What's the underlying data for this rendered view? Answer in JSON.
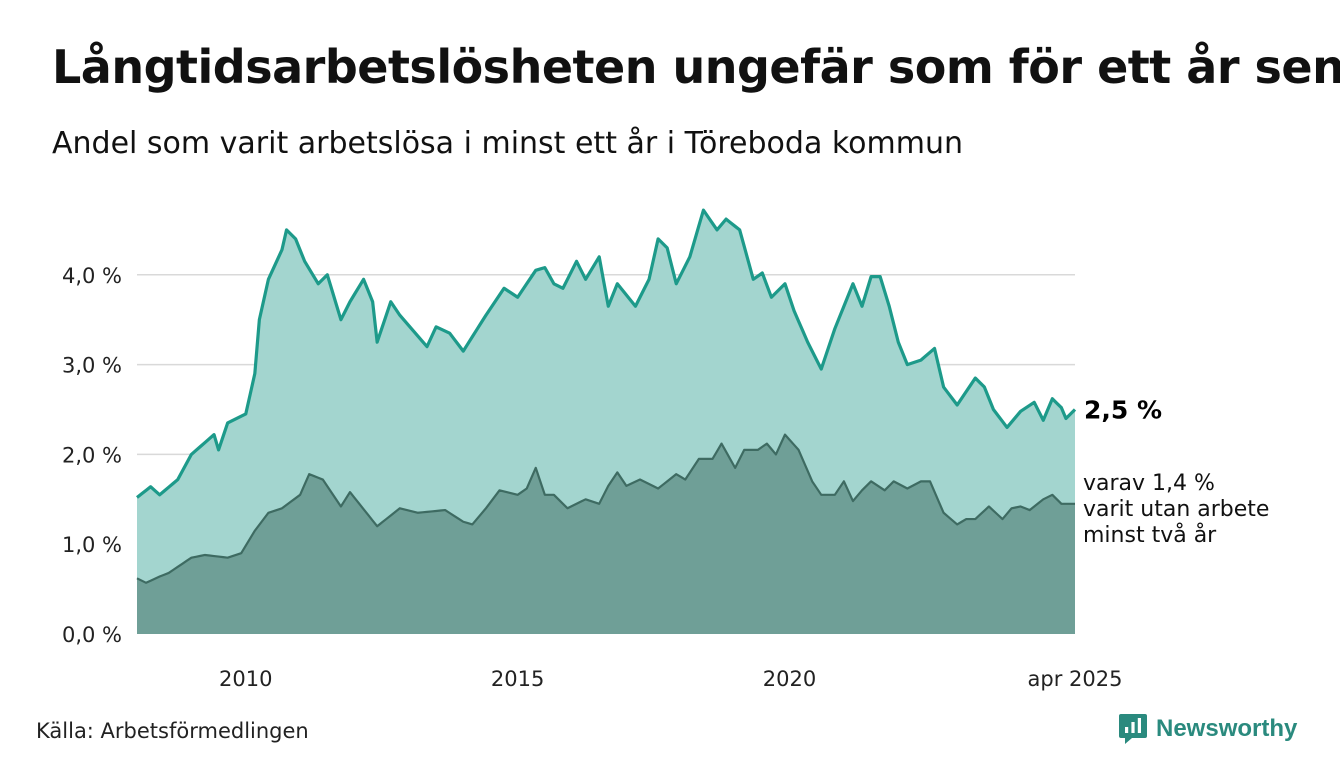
{
  "title": "Långtidsarbetslösheten ungefär som för ett år sen",
  "subtitle": "Andel som varit arbetslösa i minst ett år i Töreboda kommun",
  "source": "Källa: Arbetsförmedlingen",
  "brand": {
    "name": "Newsworthy",
    "icon": "newsworthy-logo-icon"
  },
  "colors": {
    "main_line": "#1d9a8a",
    "main_fill": "#a3d5cf",
    "sub_line": "#3e6b62",
    "sub_fill": "#6f9f97",
    "grid": "#d9d9d9",
    "brand": "#2a8a7e"
  },
  "annotations": {
    "end_value": "2,5 %",
    "sub_lines": [
      "varav 1,4 %",
      "varit utan arbete",
      "minst två år"
    ]
  },
  "chart_data": {
    "type": "area",
    "title": "Långtidsarbetslösheten ungefär som för ett år sen",
    "subtitle": "Andel som varit arbetslösa i minst ett år i Töreboda kommun",
    "xlabel": "",
    "ylabel": "",
    "x_start": "2008-01",
    "x_end": "2025-04",
    "x_frequency": "monthly",
    "x_ticks": [
      {
        "label": "2010",
        "value": "2010-01"
      },
      {
        "label": "2015",
        "value": "2015-01"
      },
      {
        "label": "2020",
        "value": "2020-01"
      },
      {
        "label": "apr 2025",
        "value": "2025-04"
      }
    ],
    "ylim": [
      0,
      5
    ],
    "y_ticks": [
      {
        "label": "0,0 %",
        "value": 0
      },
      {
        "label": "1,0 %",
        "value": 1
      },
      {
        "label": "2,0 %",
        "value": 2
      },
      {
        "label": "3,0 %",
        "value": 3
      },
      {
        "label": "4,0 %",
        "value": 4
      }
    ],
    "grid": true,
    "legend": "none",
    "series": [
      {
        "name": "",
        "anchors": [
          [
            "2008-01",
            1.52
          ],
          [
            "2008-04",
            1.64
          ],
          [
            "2008-06",
            1.55
          ],
          [
            "2008-10",
            1.72
          ],
          [
            "2009-01",
            2.0
          ],
          [
            "2009-06",
            2.22
          ],
          [
            "2009-07",
            2.05
          ],
          [
            "2009-09",
            2.35
          ],
          [
            "2010-01",
            2.45
          ],
          [
            "2010-03",
            2.9
          ],
          [
            "2010-04",
            3.5
          ],
          [
            "2010-06",
            3.95
          ],
          [
            "2010-09",
            4.28
          ],
          [
            "2010-10",
            4.5
          ],
          [
            "2010-12",
            4.4
          ],
          [
            "2011-02",
            4.15
          ],
          [
            "2011-05",
            3.9
          ],
          [
            "2011-07",
            4.0
          ],
          [
            "2011-10",
            3.5
          ],
          [
            "2011-12",
            3.7
          ],
          [
            "2012-03",
            3.95
          ],
          [
            "2012-05",
            3.7
          ],
          [
            "2012-06",
            3.25
          ],
          [
            "2012-09",
            3.7
          ],
          [
            "2012-11",
            3.55
          ],
          [
            "2013-05",
            3.2
          ],
          [
            "2013-07",
            3.42
          ],
          [
            "2013-10",
            3.35
          ],
          [
            "2014-01",
            3.15
          ],
          [
            "2014-06",
            3.55
          ],
          [
            "2014-10",
            3.85
          ],
          [
            "2015-01",
            3.75
          ],
          [
            "2015-05",
            4.05
          ],
          [
            "2015-07",
            4.08
          ],
          [
            "2015-09",
            3.9
          ],
          [
            "2015-11",
            3.85
          ],
          [
            "2016-02",
            4.15
          ],
          [
            "2016-04",
            3.95
          ],
          [
            "2016-07",
            4.2
          ],
          [
            "2016-09",
            3.65
          ],
          [
            "2016-11",
            3.9
          ],
          [
            "2017-03",
            3.65
          ],
          [
            "2017-06",
            3.95
          ],
          [
            "2017-08",
            4.4
          ],
          [
            "2017-10",
            4.3
          ],
          [
            "2017-12",
            3.9
          ],
          [
            "2018-03",
            4.2
          ],
          [
            "2018-06",
            4.72
          ],
          [
            "2018-09",
            4.5
          ],
          [
            "2018-11",
            4.62
          ],
          [
            "2019-02",
            4.5
          ],
          [
            "2019-05",
            3.95
          ],
          [
            "2019-07",
            4.02
          ],
          [
            "2019-09",
            3.75
          ],
          [
            "2019-12",
            3.9
          ],
          [
            "2020-02",
            3.6
          ],
          [
            "2020-05",
            3.25
          ],
          [
            "2020-08",
            2.95
          ],
          [
            "2020-11",
            3.4
          ],
          [
            "2021-01",
            3.65
          ],
          [
            "2021-03",
            3.9
          ],
          [
            "2021-05",
            3.65
          ],
          [
            "2021-07",
            3.98
          ],
          [
            "2021-09",
            3.98
          ],
          [
            "2021-11",
            3.65
          ],
          [
            "2022-01",
            3.25
          ],
          [
            "2022-03",
            3.0
          ],
          [
            "2022-06",
            3.05
          ],
          [
            "2022-09",
            3.18
          ],
          [
            "2022-11",
            2.75
          ],
          [
            "2023-02",
            2.55
          ],
          [
            "2023-04",
            2.7
          ],
          [
            "2023-06",
            2.85
          ],
          [
            "2023-08",
            2.75
          ],
          [
            "2023-10",
            2.5
          ],
          [
            "2024-01",
            2.3
          ],
          [
            "2024-04",
            2.48
          ],
          [
            "2024-07",
            2.58
          ],
          [
            "2024-09",
            2.38
          ],
          [
            "2024-11",
            2.62
          ],
          [
            "2025-01",
            2.52
          ],
          [
            "2025-02",
            2.4
          ],
          [
            "2025-04",
            2.5
          ]
        ]
      },
      {
        "name": "",
        "anchors": [
          [
            "2008-01",
            0.62
          ],
          [
            "2008-03",
            0.57
          ],
          [
            "2008-06",
            0.64
          ],
          [
            "2008-08",
            0.68
          ],
          [
            "2009-01",
            0.85
          ],
          [
            "2009-04",
            0.88
          ],
          [
            "2009-09",
            0.85
          ],
          [
            "2009-12",
            0.9
          ],
          [
            "2010-03",
            1.15
          ],
          [
            "2010-06",
            1.35
          ],
          [
            "2010-09",
            1.4
          ],
          [
            "2011-01",
            1.55
          ],
          [
            "2011-03",
            1.78
          ],
          [
            "2011-06",
            1.72
          ],
          [
            "2011-10",
            1.42
          ],
          [
            "2011-12",
            1.58
          ],
          [
            "2012-06",
            1.2
          ],
          [
            "2012-09",
            1.32
          ],
          [
            "2012-11",
            1.4
          ],
          [
            "2013-03",
            1.35
          ],
          [
            "2013-09",
            1.38
          ],
          [
            "2014-01",
            1.25
          ],
          [
            "2014-03",
            1.22
          ],
          [
            "2014-06",
            1.4
          ],
          [
            "2014-09",
            1.6
          ],
          [
            "2015-01",
            1.55
          ],
          [
            "2015-03",
            1.62
          ],
          [
            "2015-05",
            1.85
          ],
          [
            "2015-07",
            1.55
          ],
          [
            "2015-09",
            1.55
          ],
          [
            "2015-12",
            1.4
          ],
          [
            "2016-04",
            1.5
          ],
          [
            "2016-07",
            1.45
          ],
          [
            "2016-09",
            1.65
          ],
          [
            "2016-11",
            1.8
          ],
          [
            "2017-01",
            1.65
          ],
          [
            "2017-04",
            1.72
          ],
          [
            "2017-08",
            1.62
          ],
          [
            "2017-12",
            1.78
          ],
          [
            "2018-02",
            1.72
          ],
          [
            "2018-05",
            1.95
          ],
          [
            "2018-08",
            1.95
          ],
          [
            "2018-10",
            2.12
          ],
          [
            "2019-01",
            1.85
          ],
          [
            "2019-03",
            2.05
          ],
          [
            "2019-06",
            2.05
          ],
          [
            "2019-08",
            2.12
          ],
          [
            "2019-10",
            2.0
          ],
          [
            "2019-12",
            2.22
          ],
          [
            "2020-03",
            2.05
          ],
          [
            "2020-06",
            1.7
          ],
          [
            "2020-08",
            1.55
          ],
          [
            "2020-11",
            1.55
          ],
          [
            "2021-01",
            1.7
          ],
          [
            "2021-03",
            1.48
          ],
          [
            "2021-05",
            1.6
          ],
          [
            "2021-07",
            1.7
          ],
          [
            "2021-10",
            1.6
          ],
          [
            "2021-12",
            1.7
          ],
          [
            "2022-03",
            1.62
          ],
          [
            "2022-06",
            1.7
          ],
          [
            "2022-08",
            1.7
          ],
          [
            "2022-11",
            1.35
          ],
          [
            "2023-02",
            1.22
          ],
          [
            "2023-04",
            1.28
          ],
          [
            "2023-06",
            1.28
          ],
          [
            "2023-09",
            1.42
          ],
          [
            "2023-12",
            1.28
          ],
          [
            "2024-02",
            1.4
          ],
          [
            "2024-04",
            1.42
          ],
          [
            "2024-06",
            1.38
          ],
          [
            "2024-09",
            1.5
          ],
          [
            "2024-11",
            1.55
          ],
          [
            "2025-01",
            1.45
          ],
          [
            "2025-04",
            1.45
          ]
        ]
      }
    ]
  }
}
